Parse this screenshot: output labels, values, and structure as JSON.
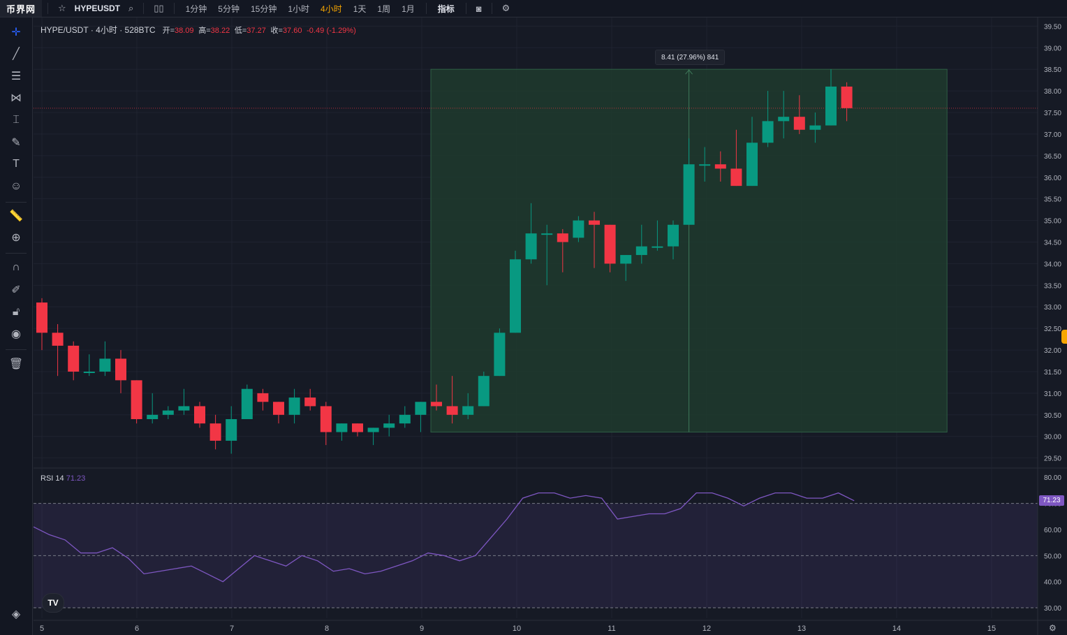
{
  "topbar": {
    "logo": "币界网",
    "symbol": "HYPEUSDT",
    "intervals": [
      "1分钟",
      "5分钟",
      "15分钟",
      "1小时",
      "4小时",
      "1天",
      "1周",
      "1月"
    ],
    "active_interval": "4小时",
    "indicators_label": "指标",
    "icons": [
      "star-icon",
      "search-icon",
      "candles-icon",
      "camera-icon",
      "settings-icon"
    ]
  },
  "sidebar": {
    "tools": [
      "crosshair-icon",
      "trend-line-icon",
      "fib-lines-icon",
      "pattern-icon",
      "measure-line-icon",
      "brush-icon",
      "text-icon",
      "emoji-icon",
      "ruler-icon",
      "zoom-in-icon",
      "magnet-icon",
      "lock-drawing-icon",
      "lock-icon",
      "eye-icon",
      "trash-icon",
      "layers-icon"
    ]
  },
  "legend": {
    "pair": "HYPE/USDT",
    "interval": "4小时",
    "exchange": "528BTC",
    "open_label": "开=",
    "open": "38.09",
    "high_label": "高=",
    "high": "38.22",
    "low_label": "低=",
    "low": "37.27",
    "close_label": "收=",
    "close": "37.60",
    "change": "-0.49",
    "change_pct": "(-1.29%)"
  },
  "measure_tip": "8.41 (27.96%) 841",
  "rsi": {
    "label": "RSI",
    "period": "14",
    "value": "71.23",
    "badge": "71.23",
    "axis": [
      "80.00",
      "70.00",
      "60.00",
      "50.00",
      "40.00",
      "30.00"
    ],
    "levels": [
      70,
      50,
      30
    ],
    "values": [
      61,
      58,
      56,
      51,
      51,
      53,
      49,
      43,
      44,
      45,
      46,
      43,
      40,
      45,
      50,
      48,
      46,
      50,
      48,
      44,
      45,
      43,
      44,
      46,
      48,
      51,
      50,
      48,
      50,
      57,
      64,
      72,
      74,
      74,
      72,
      73,
      72,
      64,
      65,
      66,
      66,
      68,
      74,
      74,
      72,
      69,
      72,
      74,
      74,
      72,
      72,
      74,
      71
    ]
  },
  "chart_data": {
    "type": "candlestick",
    "y_axis": [
      "39.50",
      "39.00",
      "38.50",
      "38.00",
      "37.50",
      "37.00",
      "36.50",
      "36.00",
      "35.50",
      "35.00",
      "34.50",
      "34.00",
      "33.50",
      "33.00",
      "32.50",
      "32.00",
      "31.50",
      "31.00",
      "30.50",
      "30.00",
      "29.50"
    ],
    "ylim": [
      29.3,
      39.7
    ],
    "x_axis": [
      "5",
      "6",
      "7",
      "8",
      "9",
      "10",
      "11",
      "12",
      "13",
      "14",
      "15"
    ],
    "current_price": 37.6,
    "colors": {
      "up": "#089981",
      "down": "#f23645",
      "range_box": "#1f3b2e",
      "range_border": "#2e5e44",
      "rsi": "#7e57c2"
    },
    "range_box": {
      "from_index": 25,
      "to_index": 57,
      "low": 30.1,
      "high": 38.5
    },
    "candles": [
      {
        "o": 33.1,
        "h": 33.2,
        "l": 32.0,
        "c": 32.4
      },
      {
        "o": 32.4,
        "h": 32.6,
        "l": 31.4,
        "c": 32.1
      },
      {
        "o": 32.1,
        "h": 32.2,
        "l": 31.3,
        "c": 31.5
      },
      {
        "o": 31.5,
        "h": 31.9,
        "l": 31.4,
        "c": 31.5
      },
      {
        "o": 31.5,
        "h": 32.2,
        "l": 31.4,
        "c": 31.8
      },
      {
        "o": 31.8,
        "h": 32.0,
        "l": 31.0,
        "c": 31.3
      },
      {
        "o": 31.3,
        "h": 31.3,
        "l": 30.3,
        "c": 30.4
      },
      {
        "o": 30.4,
        "h": 31.0,
        "l": 30.3,
        "c": 30.5
      },
      {
        "o": 30.5,
        "h": 30.7,
        "l": 30.4,
        "c": 30.6
      },
      {
        "o": 30.6,
        "h": 31.1,
        "l": 30.5,
        "c": 30.7
      },
      {
        "o": 30.7,
        "h": 30.8,
        "l": 30.2,
        "c": 30.3
      },
      {
        "o": 30.3,
        "h": 30.5,
        "l": 29.7,
        "c": 29.9
      },
      {
        "o": 29.9,
        "h": 30.7,
        "l": 29.6,
        "c": 30.4
      },
      {
        "o": 30.4,
        "h": 31.2,
        "l": 30.4,
        "c": 31.1
      },
      {
        "o": 31.0,
        "h": 31.1,
        "l": 30.6,
        "c": 30.8
      },
      {
        "o": 30.8,
        "h": 30.8,
        "l": 30.3,
        "c": 30.5
      },
      {
        "o": 30.5,
        "h": 31.1,
        "l": 30.3,
        "c": 30.9
      },
      {
        "o": 30.9,
        "h": 31.1,
        "l": 30.6,
        "c": 30.7
      },
      {
        "o": 30.7,
        "h": 30.8,
        "l": 29.8,
        "c": 30.1
      },
      {
        "o": 30.1,
        "h": 30.3,
        "l": 29.9,
        "c": 30.3
      },
      {
        "o": 30.3,
        "h": 30.3,
        "l": 30.0,
        "c": 30.1
      },
      {
        "o": 30.1,
        "h": 30.2,
        "l": 29.8,
        "c": 30.2
      },
      {
        "o": 30.2,
        "h": 30.5,
        "l": 30.0,
        "c": 30.3
      },
      {
        "o": 30.3,
        "h": 30.7,
        "l": 30.2,
        "c": 30.5
      },
      {
        "o": 30.5,
        "h": 30.8,
        "l": 30.1,
        "c": 30.8
      },
      {
        "o": 30.8,
        "h": 31.2,
        "l": 30.6,
        "c": 30.7
      },
      {
        "o": 30.7,
        "h": 31.4,
        "l": 30.3,
        "c": 30.5
      },
      {
        "o": 30.5,
        "h": 31.0,
        "l": 30.4,
        "c": 30.7
      },
      {
        "o": 30.7,
        "h": 31.5,
        "l": 30.7,
        "c": 31.4
      },
      {
        "o": 31.4,
        "h": 32.5,
        "l": 31.4,
        "c": 32.4
      },
      {
        "o": 32.4,
        "h": 34.3,
        "l": 32.4,
        "c": 34.1
      },
      {
        "o": 34.1,
        "h": 35.4,
        "l": 34.0,
        "c": 34.7
      },
      {
        "o": 34.7,
        "h": 34.9,
        "l": 33.5,
        "c": 34.7
      },
      {
        "o": 34.7,
        "h": 34.8,
        "l": 33.8,
        "c": 34.5
      },
      {
        "o": 34.6,
        "h": 35.1,
        "l": 34.5,
        "c": 35.0
      },
      {
        "o": 35.0,
        "h": 35.2,
        "l": 33.9,
        "c": 34.9
      },
      {
        "o": 34.9,
        "h": 34.9,
        "l": 33.8,
        "c": 34.0
      },
      {
        "o": 34.0,
        "h": 34.2,
        "l": 33.6,
        "c": 34.2
      },
      {
        "o": 34.2,
        "h": 34.9,
        "l": 34.0,
        "c": 34.4
      },
      {
        "o": 34.4,
        "h": 35.0,
        "l": 34.3,
        "c": 34.4
      },
      {
        "o": 34.4,
        "h": 35.0,
        "l": 34.1,
        "c": 34.9
      },
      {
        "o": 34.9,
        "h": 36.9,
        "l": 34.9,
        "c": 36.3
      },
      {
        "o": 36.3,
        "h": 36.7,
        "l": 35.9,
        "c": 36.3
      },
      {
        "o": 36.3,
        "h": 36.6,
        "l": 35.9,
        "c": 36.2
      },
      {
        "o": 36.2,
        "h": 37.1,
        "l": 35.8,
        "c": 35.8
      },
      {
        "o": 35.8,
        "h": 37.4,
        "l": 35.8,
        "c": 36.8
      },
      {
        "o": 36.8,
        "h": 38.0,
        "l": 36.7,
        "c": 37.3
      },
      {
        "o": 37.3,
        "h": 38.0,
        "l": 36.9,
        "c": 37.4
      },
      {
        "o": 37.4,
        "h": 37.9,
        "l": 37.0,
        "c": 37.1
      },
      {
        "o": 37.1,
        "h": 37.5,
        "l": 36.8,
        "c": 37.2
      },
      {
        "o": 37.2,
        "h": 38.5,
        "l": 37.2,
        "c": 38.1
      },
      {
        "o": 38.1,
        "h": 38.2,
        "l": 37.3,
        "c": 37.6
      }
    ]
  }
}
